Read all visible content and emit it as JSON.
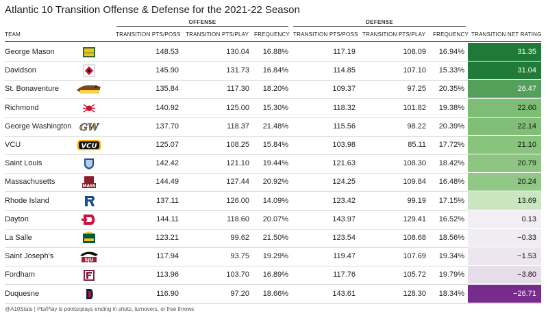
{
  "title": "Atlantic 10 Transition Offense & Defense for the 2021-22 Season",
  "groups": {
    "offense": "OFFENSE",
    "defense": "DEFENSE"
  },
  "columns": {
    "team": "TEAM",
    "off_pts_poss": "TRANSITION PTS/POSS",
    "off_pts_play": "TRANSITION PTS/PLAY",
    "off_freq": "FREQUENCY",
    "def_pts_poss": "TRANSITION PTS/POSS",
    "def_pts_play": "TRANSITION PTS/PLAY",
    "def_freq": "FREQUENCY",
    "net": "TRANSITION NET RATING"
  },
  "chart_data": {
    "type": "table",
    "rows": [
      {
        "team": "George Mason",
        "logo": "george-mason-logo",
        "off_pts_poss": "148.53",
        "off_pts_play": "130.04",
        "off_freq": "16.88%",
        "def_pts_poss": "117.19",
        "def_pts_play": "108.09",
        "def_freq": "16.94%",
        "net": "31.35",
        "net_value": 31.35,
        "net_color": "#1e7a36",
        "net_text_color": "#ffffff"
      },
      {
        "team": "Davidson",
        "logo": "davidson-logo",
        "off_pts_poss": "145.90",
        "off_pts_play": "131.73",
        "off_freq": "16.84%",
        "def_pts_poss": "114.85",
        "def_pts_play": "107.10",
        "def_freq": "15.33%",
        "net": "31.04",
        "net_value": 31.04,
        "net_color": "#1f7b37",
        "net_text_color": "#ffffff"
      },
      {
        "team": "St. Bonaventure",
        "logo": "st-bonaventure-logo",
        "off_pts_poss": "135.84",
        "off_pts_play": "117.30",
        "off_freq": "18.20%",
        "def_pts_poss": "109.37",
        "def_pts_play": "97.25",
        "def_freq": "20.35%",
        "net": "26.47",
        "net_value": 26.47,
        "net_color": "#52a05a",
        "net_text_color": "#ffffff"
      },
      {
        "team": "Richmond",
        "logo": "richmond-logo",
        "off_pts_poss": "140.92",
        "off_pts_play": "125.00",
        "off_freq": "15.30%",
        "def_pts_poss": "118.32",
        "def_pts_play": "101.82",
        "def_freq": "19.38%",
        "net": "22.60",
        "net_value": 22.6,
        "net_color": "#7dbd75",
        "net_text_color": "#111111"
      },
      {
        "team": "George Washington",
        "logo": "george-washington-logo",
        "off_pts_poss": "137.70",
        "off_pts_play": "118.37",
        "off_freq": "21.48%",
        "def_pts_poss": "115.56",
        "def_pts_play": "98.22",
        "def_freq": "20.39%",
        "net": "22.14",
        "net_value": 22.14,
        "net_color": "#81bf78",
        "net_text_color": "#111111"
      },
      {
        "team": "VCU",
        "logo": "vcu-logo",
        "off_pts_poss": "125.07",
        "off_pts_play": "108.25",
        "off_freq": "15.84%",
        "def_pts_poss": "103.98",
        "def_pts_play": "85.11",
        "def_freq": "17.72%",
        "net": "21.10",
        "net_value": 21.1,
        "net_color": "#89c47f",
        "net_text_color": "#111111"
      },
      {
        "team": "Saint Louis",
        "logo": "saint-louis-logo",
        "off_pts_poss": "142.42",
        "off_pts_play": "121.10",
        "off_freq": "19.44%",
        "def_pts_poss": "121.63",
        "def_pts_play": "108.30",
        "def_freq": "18.42%",
        "net": "20.79",
        "net_value": 20.79,
        "net_color": "#8cc682",
        "net_text_color": "#111111"
      },
      {
        "team": "Massachusetts",
        "logo": "massachusetts-logo",
        "off_pts_poss": "144.49",
        "off_pts_play": "127.44",
        "off_freq": "20.92%",
        "def_pts_poss": "124.25",
        "def_pts_play": "109.84",
        "def_freq": "16.48%",
        "net": "20.24",
        "net_value": 20.24,
        "net_color": "#91c886",
        "net_text_color": "#111111"
      },
      {
        "team": "Rhode Island",
        "logo": "rhode-island-logo",
        "off_pts_poss": "137.11",
        "off_pts_play": "126.00",
        "off_freq": "14.09%",
        "def_pts_poss": "123.42",
        "def_pts_play": "99.19",
        "def_freq": "17.15%",
        "net": "13.69",
        "net_value": 13.69,
        "net_color": "#c9e6c0",
        "net_text_color": "#111111"
      },
      {
        "team": "Dayton",
        "logo": "dayton-logo",
        "off_pts_poss": "144.11",
        "off_pts_play": "118.60",
        "off_freq": "20.07%",
        "def_pts_poss": "143.97",
        "def_pts_play": "129.41",
        "def_freq": "16.52%",
        "net": "0.13",
        "net_value": 0.13,
        "net_color": "#f1eef4",
        "net_text_color": "#111111"
      },
      {
        "team": "La Salle",
        "logo": "la-salle-logo",
        "off_pts_poss": "123.21",
        "off_pts_play": "99.62",
        "off_freq": "21.50%",
        "def_pts_poss": "123.54",
        "def_pts_play": "108.68",
        "def_freq": "18.56%",
        "net": "−0.33",
        "net_value": -0.33,
        "net_color": "#efecf2",
        "net_text_color": "#111111"
      },
      {
        "team": "Saint Joseph's",
        "logo": "saint-josephs-logo",
        "off_pts_poss": "117.94",
        "off_pts_play": "93.75",
        "off_freq": "19.29%",
        "def_pts_poss": "119.47",
        "def_pts_play": "107.69",
        "def_freq": "19.34%",
        "net": "−1.53",
        "net_value": -1.53,
        "net_color": "#ece6ef",
        "net_text_color": "#111111"
      },
      {
        "team": "Fordham",
        "logo": "fordham-logo",
        "off_pts_poss": "113.96",
        "off_pts_play": "103.70",
        "off_freq": "16.89%",
        "def_pts_poss": "117.76",
        "def_pts_play": "105.72",
        "def_freq": "19.79%",
        "net": "−3.80",
        "net_value": -3.8,
        "net_color": "#e6dcea",
        "net_text_color": "#111111"
      },
      {
        "team": "Duquesne",
        "logo": "duquesne-logo",
        "off_pts_poss": "116.90",
        "off_pts_play": "97.20",
        "off_freq": "18.66%",
        "def_pts_poss": "143.61",
        "def_pts_play": "128.30",
        "def_freq": "18.34%",
        "net": "−26.71",
        "net_value": -26.71,
        "net_color": "#772b8c",
        "net_text_color": "#ffffff"
      }
    ]
  },
  "footnote": "@A10Stats | Pts/Play is points/plays ending in shots, turnovers, or free throws"
}
